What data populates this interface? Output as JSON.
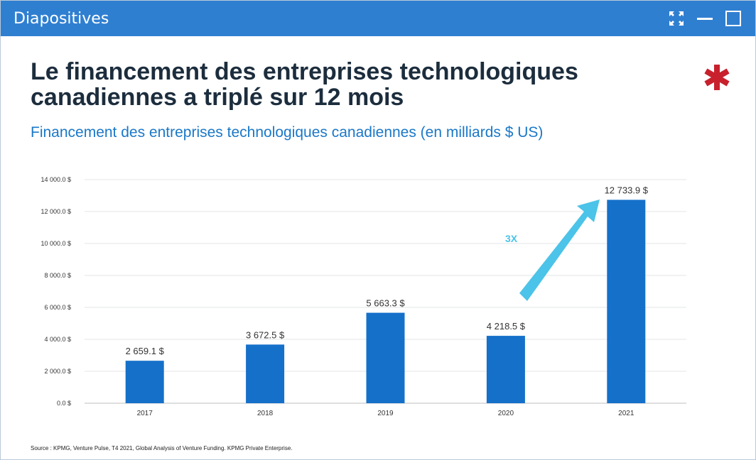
{
  "window": {
    "title": "Diapositives",
    "controls": [
      {
        "name": "expand",
        "icon": "expand-icon"
      },
      {
        "name": "minimize",
        "icon": "minimize-icon"
      },
      {
        "name": "maximize",
        "icon": "maximize-icon"
      }
    ]
  },
  "slide": {
    "title_line1": "Le financement des entreprises technologiques",
    "title_line2": "canadiennes a triplé sur 12 mois",
    "subtitle": "Financement des entreprises technologiques canadiennes (en milliards $ US)",
    "multiplier_label": "3X",
    "source": "Source : KPMG, Venture Pulse, T4 2021, Global Analysis of Venture Funding. KPMG Private Enterprise.",
    "logo": "red-asterisk-icon"
  },
  "colors": {
    "titlebar": "#2f7fd1",
    "bar": "#1570c9",
    "arrow": "#4cc3e8",
    "subtitle": "#1a78c8",
    "logo": "#c8202c"
  },
  "chart_data": {
    "type": "bar",
    "categories": [
      "2017",
      "2018",
      "2019",
      "2020",
      "2021"
    ],
    "values": [
      2659.1,
      3672.5,
      5663.3,
      4218.5,
      12733.9
    ],
    "data_labels": [
      "2 659.1 $",
      "3 672.5 $",
      "5 663.3 $",
      "4 218.5 $",
      "12 733.9 $"
    ],
    "ylim": [
      0,
      14000
    ],
    "yticks": [
      0,
      2000,
      4000,
      6000,
      8000,
      10000,
      12000,
      14000
    ],
    "ytick_labels": [
      "0.0 $",
      "2 000.0 $",
      "4 000.0 $",
      "6 000.0 $",
      "8 000.0 $",
      "10 000.0 $",
      "12 000.0 $",
      "14 000.0 $"
    ],
    "grid": true,
    "title": "",
    "xlabel": "",
    "ylabel": ""
  }
}
